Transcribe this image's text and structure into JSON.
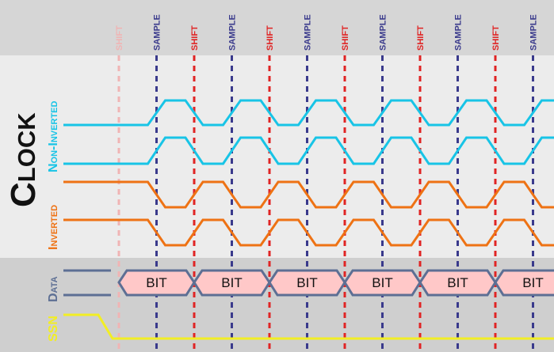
{
  "title": {
    "main": "Clock"
  },
  "clock_labels": {
    "non_inverted": "Non-Inverted",
    "inverted": "Inverted"
  },
  "bus_labels": {
    "data": "Data",
    "ssn": "SSN"
  },
  "columns": [
    {
      "label": "SHIFT",
      "kind": "shift-faded"
    },
    {
      "label": "SAMPLE",
      "kind": "sample"
    },
    {
      "label": "SHIFT",
      "kind": "shift"
    },
    {
      "label": "SAMPLE",
      "kind": "sample"
    },
    {
      "label": "SHIFT",
      "kind": "shift"
    },
    {
      "label": "SAMPLE",
      "kind": "sample"
    },
    {
      "label": "SHIFT",
      "kind": "shift"
    },
    {
      "label": "SAMPLE",
      "kind": "sample"
    },
    {
      "label": "SHIFT",
      "kind": "shift"
    },
    {
      "label": "SAMPLE",
      "kind": "sample"
    },
    {
      "label": "SHIFT",
      "kind": "shift"
    },
    {
      "label": "SAMPLE",
      "kind": "sample"
    }
  ],
  "bits": [
    "BIT",
    "BIT",
    "BIT",
    "BIT",
    "BIT",
    "BIT"
  ],
  "colors": {
    "header_bg": "#d6d6d6",
    "clock_bg": "#ececec",
    "bus_bg": "#cfcfcf",
    "shift": "#e02424",
    "shift_faded": "#f0b4b4",
    "sample": "#3a3a8c",
    "non_inverted": "#18c4e6",
    "inverted": "#ee7214",
    "data_line": "#5d6f94",
    "bit_fill": "#ffc8c8",
    "ssn": "#f2ee24",
    "title": "#111111"
  }
}
